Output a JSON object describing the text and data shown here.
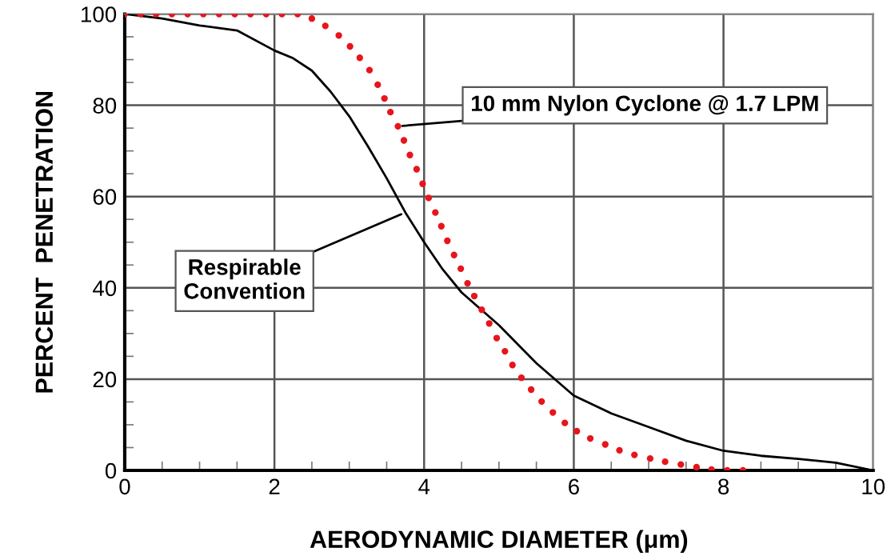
{
  "chart_data": {
    "type": "line",
    "xlabel": "AERODYNAMIC DIAMETER (μm)",
    "ylabel": "PERCENT  PENETRATION",
    "xlim": [
      0,
      10
    ],
    "ylim": [
      0,
      100
    ],
    "xticks": [
      0,
      2,
      4,
      6,
      8,
      10
    ],
    "yticks": [
      0,
      20,
      40,
      60,
      80,
      100
    ],
    "grid": true,
    "legend": false,
    "series": [
      {
        "color": "#000000",
        "line_style": "solid",
        "x": [
          0,
          0.5,
          1,
          1.5,
          2,
          2.25,
          2.5,
          2.75,
          3,
          3.25,
          3.5,
          3.75,
          4,
          4.25,
          4.5,
          5,
          5.5,
          6,
          6.5,
          7,
          7.5,
          8,
          8.5,
          9,
          9.5,
          10
        ],
        "values": [
          100,
          99,
          97.5,
          96.4,
          92,
          90.3,
          87.6,
          83,
          77.6,
          71,
          64,
          56.5,
          50,
          44,
          39,
          31.8,
          23.5,
          16.4,
          12.5,
          9.5,
          6.5,
          4.3,
          3.2,
          2.5,
          1.7,
          0
        ]
      },
      {
        "type": "scatter",
        "color": "#e8141b",
        "marker": "circle",
        "x": [
          0,
          0.21,
          0.42,
          0.63,
          0.84,
          1.05,
          1.26,
          1.47,
          1.68,
          1.89,
          2.1,
          2.31,
          2.5,
          2.68,
          2.86,
          3.01,
          3.14,
          3.27,
          3.38,
          3.47,
          3.55,
          3.65,
          3.73,
          3.81,
          3.9,
          3.98,
          4.06,
          4.15,
          4.23,
          4.31,
          4.4,
          4.49,
          4.58,
          4.67,
          4.77,
          4.87,
          4.97,
          5.08,
          5.18,
          5.3,
          5.43,
          5.57,
          5.72,
          5.88,
          6.04,
          6.22,
          6.42,
          6.61,
          6.81,
          7.02,
          7.22,
          7.43,
          7.64,
          7.84,
          8.05,
          8.26
        ],
        "values": [
          100,
          100,
          100,
          100,
          100,
          100,
          100,
          100,
          100,
          100,
          100,
          100,
          99,
          97.4,
          95.3,
          92.9,
          90.4,
          87.7,
          84.5,
          81.5,
          78.5,
          75.4,
          72.3,
          69.1,
          66,
          62.8,
          59.7,
          56.5,
          53.5,
          50.3,
          47.2,
          44.2,
          41,
          38.2,
          35.2,
          32.2,
          29,
          26.1,
          23.1,
          20.3,
          17.7,
          15.1,
          12.7,
          10.4,
          8.6,
          7,
          5.7,
          4.4,
          3.4,
          2.6,
          1.9,
          1.3,
          0.7,
          0.2,
          0,
          0
        ]
      }
    ],
    "annotations": [
      {
        "text": "10 mm Nylon Cyclone @ 1.7 LPM",
        "x": 3.65,
        "y": 75.4
      },
      {
        "text": "Respirable\nConvention",
        "x": 3.75,
        "y": 56.5
      }
    ]
  }
}
